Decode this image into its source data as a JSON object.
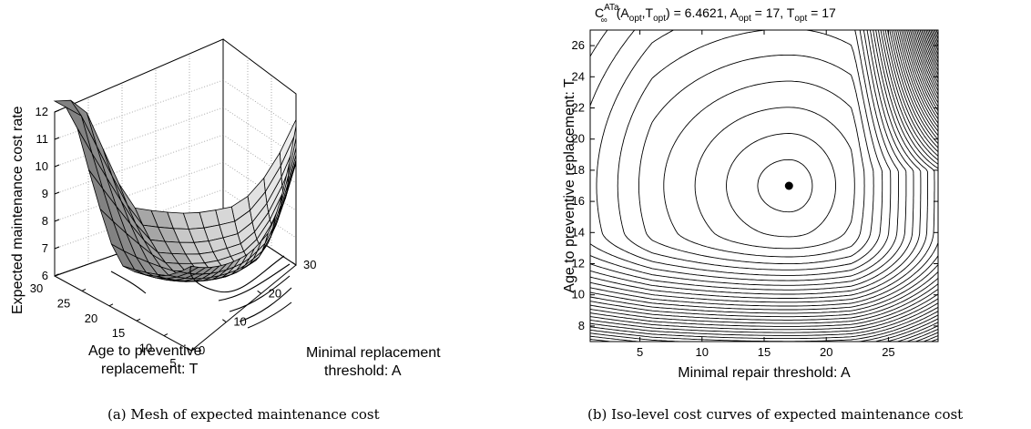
{
  "chart_data": [
    {
      "type": "surface",
      "caption": "(a) Mesh of expected maintenance cost",
      "zlabel": "Expected maintenance cost rate",
      "ylabel_line1": "Age to preventive",
      "ylabel_line2": "replacement: T",
      "xlabel_line1": "Minimal replacement",
      "xlabel_line2": "threshold: A",
      "z_ticks": [
        "6",
        "7",
        "8",
        "9",
        "10",
        "11",
        "12"
      ],
      "t_ticks": [
        "30",
        "25",
        "20",
        "15",
        "10",
        "5"
      ],
      "a_ticks": [
        "0",
        "10",
        "20",
        "30"
      ],
      "zlim": [
        6,
        12
      ],
      "a_range": [
        0,
        30
      ],
      "t_range": [
        5,
        30
      ],
      "grid": true
    },
    {
      "type": "contour",
      "caption": "(b) Iso-level cost curves of expected maintenance cost",
      "title_lhs": "C",
      "title_super": "ATa",
      "title_sub": "∞",
      "title_args": "(A",
      "title_opt": "opt",
      "title_sep": ",T",
      "title_close": ")",
      "title_value": " = 6.4621, A",
      "title_eq": " = 17, T",
      "title_tail": " = 17",
      "xlabel": "Minimal repair threshold: A",
      "ylabel": "Age to preventive replacement: T",
      "x_ticks": [
        "5",
        "10",
        "15",
        "20",
        "25"
      ],
      "y_ticks": [
        "8",
        "10",
        "12",
        "14",
        "16",
        "18",
        "20",
        "22",
        "24",
        "26"
      ],
      "xlim": [
        1,
        29
      ],
      "ylim": [
        7,
        27
      ],
      "optimum": {
        "A": 17,
        "T": 17,
        "cost": 6.4621
      }
    }
  ]
}
